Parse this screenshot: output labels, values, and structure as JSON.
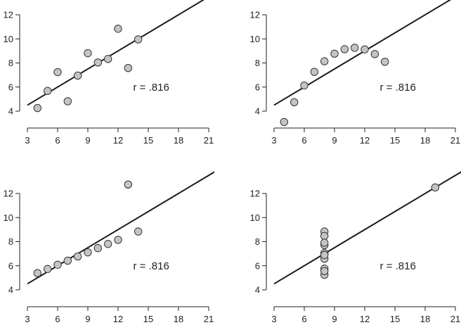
{
  "chart_data": [
    {
      "type": "scatter",
      "title": "",
      "xlabel": "",
      "ylabel": "",
      "xlim": [
        3,
        21
      ],
      "ylim": [
        4,
        12
      ],
      "xticks": [
        3,
        6,
        9,
        12,
        15,
        18,
        21
      ],
      "yticks": [
        4,
        6,
        8,
        10,
        12
      ],
      "grid": false,
      "annotation": "r = .816",
      "fit_line": {
        "intercept": 3.0,
        "slope": 0.5
      },
      "x": [
        10,
        8,
        13,
        9,
        11,
        14,
        6,
        4,
        12,
        7,
        5
      ],
      "y": [
        8.04,
        6.95,
        7.58,
        8.81,
        8.33,
        9.96,
        7.24,
        4.26,
        10.84,
        4.82,
        5.68
      ]
    },
    {
      "type": "scatter",
      "title": "",
      "xlabel": "",
      "ylabel": "",
      "xlim": [
        3,
        21
      ],
      "ylim": [
        4,
        12
      ],
      "xticks": [
        3,
        6,
        9,
        12,
        15,
        18,
        21
      ],
      "yticks": [
        4,
        6,
        8,
        10,
        12
      ],
      "grid": false,
      "annotation": "r = .816",
      "fit_line": {
        "intercept": 3.0,
        "slope": 0.5
      },
      "x": [
        10,
        8,
        13,
        9,
        11,
        14,
        6,
        4,
        12,
        7,
        5
      ],
      "y": [
        9.14,
        8.14,
        8.74,
        8.77,
        9.26,
        8.1,
        6.13,
        3.1,
        9.13,
        7.26,
        4.74
      ]
    },
    {
      "type": "scatter",
      "title": "",
      "xlabel": "",
      "ylabel": "",
      "xlim": [
        3,
        21
      ],
      "ylim": [
        4,
        12
      ],
      "xticks": [
        3,
        6,
        9,
        12,
        15,
        18,
        21
      ],
      "yticks": [
        4,
        6,
        8,
        10,
        12
      ],
      "grid": false,
      "annotation": "r = .816",
      "fit_line": {
        "intercept": 3.0,
        "slope": 0.5
      },
      "x": [
        10,
        8,
        13,
        9,
        11,
        14,
        6,
        4,
        12,
        7,
        5
      ],
      "y": [
        7.46,
        6.77,
        12.74,
        7.11,
        7.81,
        8.84,
        6.08,
        5.39,
        8.15,
        6.42,
        5.73
      ]
    },
    {
      "type": "scatter",
      "title": "",
      "xlabel": "",
      "ylabel": "",
      "xlim": [
        3,
        21
      ],
      "ylim": [
        4,
        12
      ],
      "xticks": [
        3,
        6,
        9,
        12,
        15,
        18,
        21
      ],
      "yticks": [
        4,
        6,
        8,
        10,
        12
      ],
      "grid": false,
      "annotation": "r = .816",
      "fit_line": {
        "intercept": 3.0,
        "slope": 0.5
      },
      "x": [
        8,
        8,
        8,
        8,
        8,
        8,
        8,
        19,
        8,
        8,
        8
      ],
      "y": [
        6.58,
        5.76,
        7.71,
        8.84,
        8.47,
        7.04,
        5.25,
        12.5,
        5.56,
        7.91,
        6.89
      ]
    }
  ]
}
